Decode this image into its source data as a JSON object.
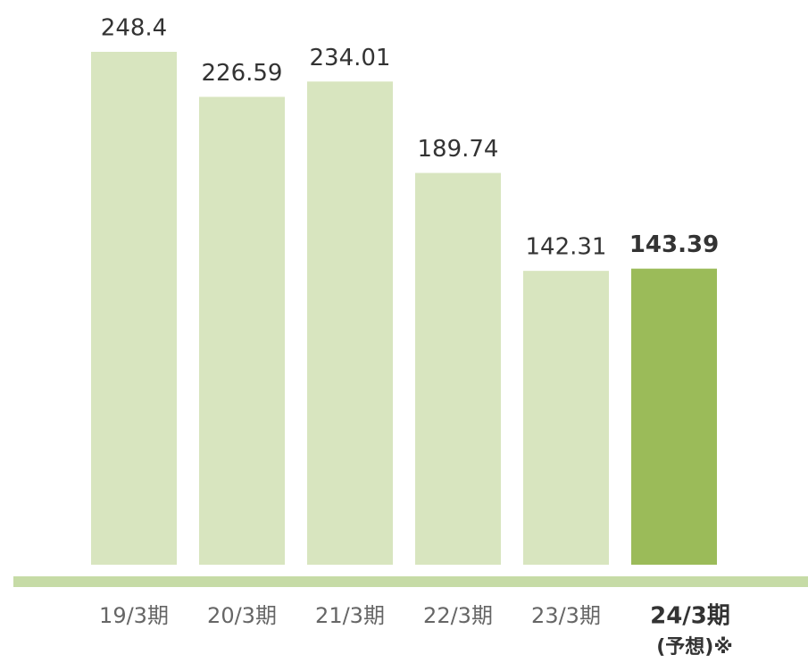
{
  "chart_data": {
    "type": "bar",
    "categories": [
      "19/3期",
      "20/3期",
      "21/3期",
      "22/3期",
      "23/3期",
      "24/3期"
    ],
    "forecast_note": "(予想)※",
    "values": [
      248.4,
      226.59,
      234.01,
      189.74,
      142.31,
      143.39
    ],
    "value_labels": [
      "248.4",
      "226.59",
      "234.01",
      "189.74",
      "142.31",
      "143.39"
    ],
    "colors": [
      "#d8e5bf",
      "#d8e5bf",
      "#d8e5bf",
      "#d8e5bf",
      "#d8e5bf",
      "#9bbb59"
    ],
    "baseline_color": "#c6dba6"
  }
}
